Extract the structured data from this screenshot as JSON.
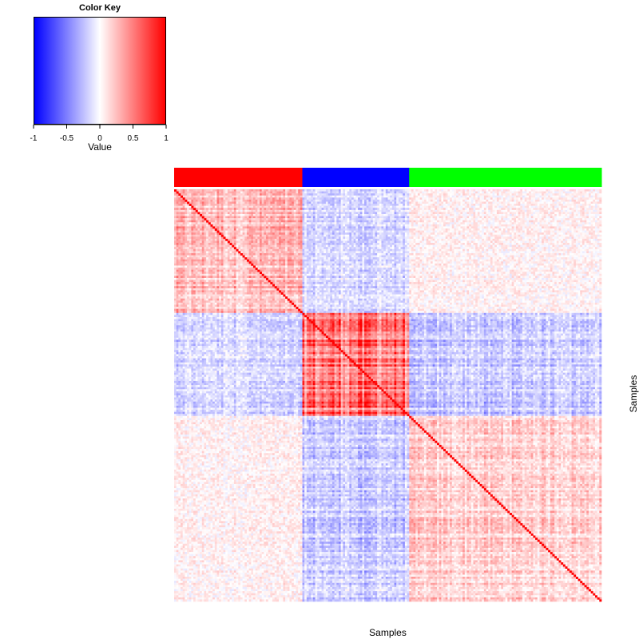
{
  "chart_data": {
    "type": "heatmap",
    "description_free": true,
    "x_label": "Samples",
    "y_label": "Samples",
    "value_range": [
      -1,
      1
    ],
    "diagonal_value": 1,
    "color_key": {
      "title": "Color Key",
      "label": "Value",
      "ticks": [
        "-1",
        "-0.5",
        "0",
        "0.5",
        "1"
      ],
      "tick_values": [
        -1,
        -0.5,
        0,
        0.5,
        1
      ],
      "low_color": "#0000ff",
      "mid_color": "#ffffff",
      "high_color": "#ff0000"
    },
    "groups": [
      {
        "color": "#ff0000",
        "n_samples": 60
      },
      {
        "color": "#0000ff",
        "n_samples": 50
      },
      {
        "color": "#00ff00",
        "n_samples": 90
      }
    ],
    "mean_correlation_between_groups": [
      [
        0.25,
        -0.15,
        0.05
      ],
      [
        -0.15,
        0.55,
        -0.2
      ],
      [
        0.05,
        -0.2,
        0.18
      ]
    ]
  }
}
